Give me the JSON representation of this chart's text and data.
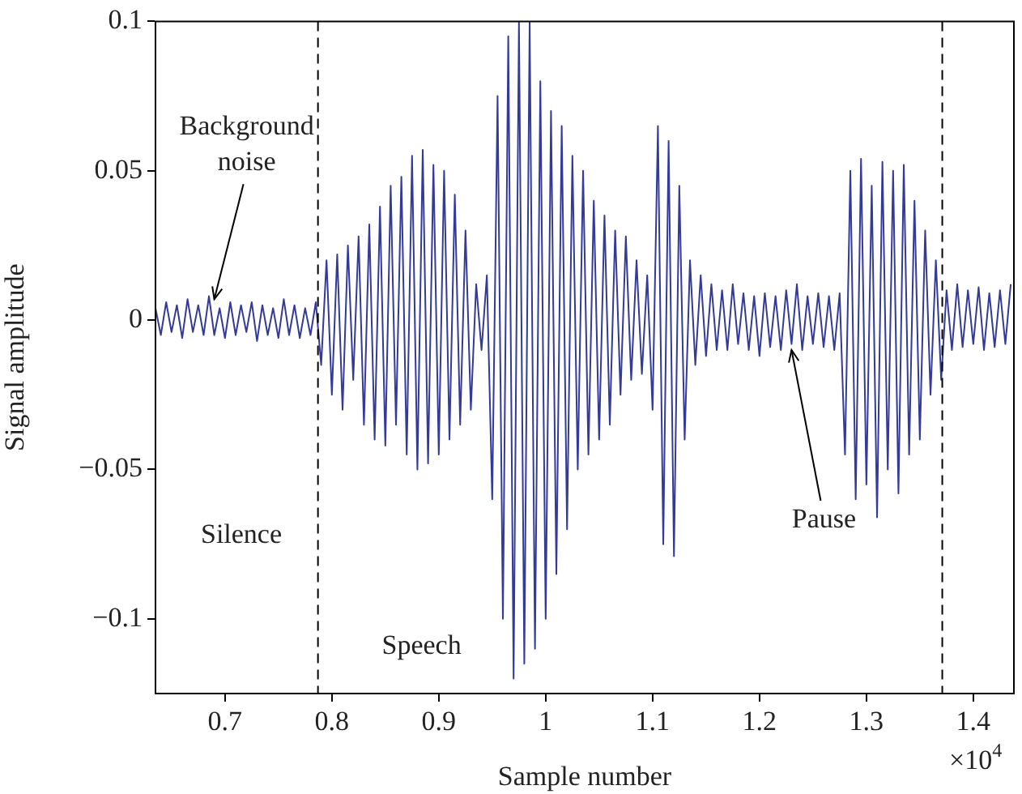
{
  "chart_data": {
    "type": "line",
    "xlabel": "Sample number",
    "ylabel": "Signal amplitude",
    "xlim": [
      0.635,
      1.438
    ],
    "ylim": [
      -0.125,
      0.1
    ],
    "xticks": [
      0.7,
      0.8,
      0.9,
      1,
      1.1,
      1.2,
      1.3,
      1.4
    ],
    "yticks": [
      {
        "value": -0.1,
        "label": "−0.1"
      },
      {
        "value": -0.05,
        "label": "−0.05"
      },
      0,
      0.05,
      0.1
    ],
    "grid": false,
    "legend": false,
    "marker": "none",
    "line_style": "solid",
    "ref_lines": [
      {
        "axis": "x",
        "value": 0.787,
        "color": "#000000",
        "line_style": "dashed"
      },
      {
        "axis": "x",
        "value": 1.371,
        "color": "#000000",
        "line_style": "dashed"
      }
    ],
    "annotations": [
      {
        "text": "Background noise",
        "x": 0.69,
        "y": 0.007
      },
      "Silence",
      "Speech",
      {
        "text": "Pause",
        "x": 1.23,
        "y": -0.01
      },
      "×10$^{4}$"
    ],
    "series": [
      {
        "color": "#333a99",
        "x": [
          0.635,
          0.64,
          0.645,
          0.65,
          0.655,
          0.66,
          0.665,
          0.67,
          0.675,
          0.68,
          0.685,
          0.69,
          0.695,
          0.7,
          0.705,
          0.71,
          0.715,
          0.72,
          0.725,
          0.73,
          0.735,
          0.74,
          0.745,
          0.75,
          0.755,
          0.76,
          0.765,
          0.77,
          0.775,
          0.78,
          0.785,
          0.79,
          0.795,
          0.8,
          0.805,
          0.81,
          0.815,
          0.82,
          0.825,
          0.83,
          0.835,
          0.84,
          0.845,
          0.85,
          0.855,
          0.86,
          0.865,
          0.87,
          0.875,
          0.88,
          0.885,
          0.89,
          0.895,
          0.9,
          0.905,
          0.91,
          0.915,
          0.92,
          0.925,
          0.93,
          0.935,
          0.94,
          0.945,
          0.95,
          0.955,
          0.96,
          0.965,
          0.97,
          0.975,
          0.98,
          0.985,
          0.99,
          0.995,
          1,
          1.005,
          1.01,
          1.015,
          1.02,
          1.025,
          1.03,
          1.035,
          1.04,
          1.045,
          1.05,
          1.055,
          1.06,
          1.065,
          1.07,
          1.075,
          1.08,
          1.085,
          1.09,
          1.095,
          1.1,
          1.105,
          1.11,
          1.115,
          1.12,
          1.125,
          1.13,
          1.135,
          1.14,
          1.145,
          1.15,
          1.155,
          1.16,
          1.165,
          1.17,
          1.175,
          1.18,
          1.185,
          1.19,
          1.195,
          1.2,
          1.205,
          1.21,
          1.215,
          1.22,
          1.225,
          1.23,
          1.235,
          1.24,
          1.245,
          1.25,
          1.255,
          1.26,
          1.265,
          1.27,
          1.275,
          1.28,
          1.285,
          1.29,
          1.295,
          1.3,
          1.305,
          1.31,
          1.315,
          1.32,
          1.325,
          1.33,
          1.335,
          1.34,
          1.345,
          1.35,
          1.355,
          1.36,
          1.365,
          1.37,
          1.375,
          1.38,
          1.385,
          1.39,
          1.395,
          1.4,
          1.405,
          1.41,
          1.415,
          1.42,
          1.425,
          1.43,
          1.435
        ],
        "values": [
          0.004,
          -0.005,
          0.006,
          -0.004,
          0.005,
          -0.006,
          0.007,
          -0.004,
          0.005,
          -0.005,
          0.008,
          -0.005,
          0.004,
          -0.006,
          0.006,
          -0.005,
          0.005,
          -0.004,
          0.006,
          -0.007,
          0.005,
          -0.005,
          0.004,
          -0.006,
          0.007,
          -0.005,
          0.005,
          -0.006,
          0.004,
          -0.005,
          0.006,
          -0.015,
          0.02,
          -0.025,
          0.022,
          -0.03,
          0.025,
          -0.02,
          0.028,
          -0.035,
          0.032,
          -0.04,
          0.038,
          -0.042,
          0.045,
          -0.035,
          0.048,
          -0.045,
          0.055,
          -0.05,
          0.057,
          -0.048,
          0.052,
          -0.045,
          0.05,
          -0.04,
          0.042,
          -0.035,
          0.03,
          -0.03,
          0.012,
          -0.01,
          0.015,
          -0.06,
          0.075,
          -0.1,
          0.095,
          -0.12,
          0.1,
          -0.115,
          0.1,
          -0.11,
          0.08,
          -0.1,
          0.07,
          -0.085,
          0.065,
          -0.07,
          0.055,
          -0.05,
          0.05,
          -0.045,
          0.04,
          -0.04,
          0.035,
          -0.035,
          0.03,
          -0.025,
          0.028,
          -0.02,
          0.02,
          -0.018,
          0.015,
          -0.03,
          0.065,
          -0.075,
          0.06,
          -0.079,
          0.045,
          -0.04,
          0.02,
          -0.015,
          0.015,
          -0.012,
          0.012,
          -0.01,
          0.01,
          -0.01,
          0.012,
          -0.008,
          0.009,
          -0.01,
          0.008,
          -0.012,
          0.009,
          -0.009,
          0.008,
          -0.01,
          0.01,
          -0.008,
          0.012,
          -0.01,
          0.008,
          -0.008,
          0.009,
          -0.009,
          0.008,
          -0.01,
          0.009,
          -0.045,
          0.05,
          -0.06,
          0.054,
          -0.055,
          0.045,
          -0.066,
          0.053,
          -0.05,
          0.05,
          -0.058,
          0.052,
          -0.045,
          0.04,
          -0.04,
          0.03,
          -0.025,
          0.02,
          -0.02,
          0.01,
          -0.01,
          0.012,
          -0.009,
          0.01,
          -0.008,
          0.011,
          -0.01,
          0.009,
          -0.009,
          0.01,
          -0.008,
          0.012
        ]
      }
    ]
  }
}
